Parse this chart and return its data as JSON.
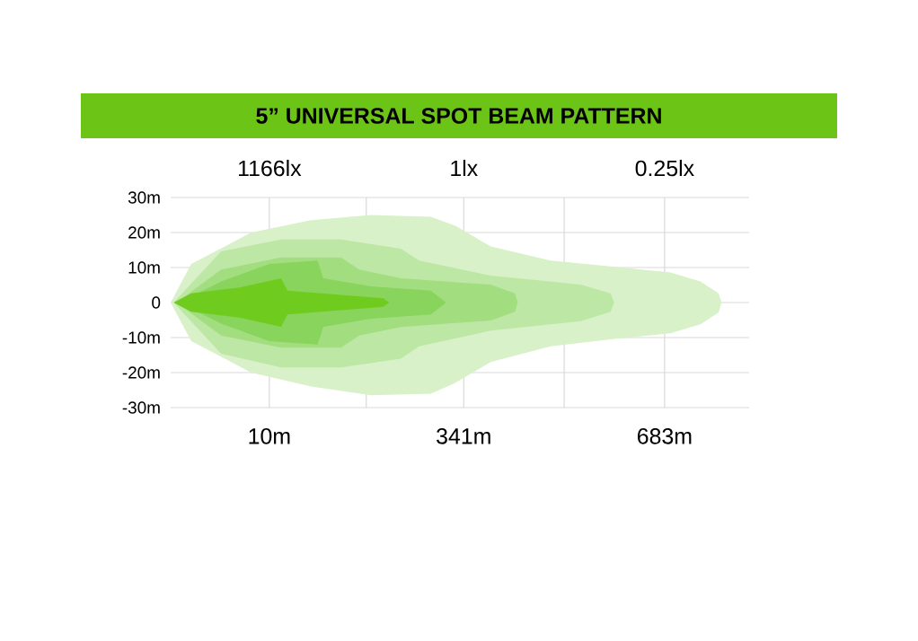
{
  "chart_data": {
    "type": "area",
    "title": "5” UNIVERSAL SPOT BEAM PATTERN",
    "xlim": [
      -158,
      827
    ],
    "ylim": [
      -30,
      30
    ],
    "xticks": [
      {
        "value": 10,
        "label": "10m"
      },
      {
        "value": 175,
        "label": null
      },
      {
        "value": 341,
        "label": "341m"
      },
      {
        "value": 512,
        "label": null
      },
      {
        "value": 683,
        "label": "683m"
      }
    ],
    "yticks": [
      {
        "value": 30,
        "label": "30m"
      },
      {
        "value": 20,
        "label": "20m"
      },
      {
        "value": 10,
        "label": "10m"
      },
      0,
      {
        "value": -10,
        "label": "-10m"
      },
      {
        "value": -20,
        "label": "-20m"
      },
      {
        "value": -30,
        "label": "-30m"
      }
    ],
    "annotations": [
      "1166lx",
      "1lx",
      "0.25lx"
    ],
    "grid": true,
    "series": [
      {
        "color": "#d8f1c8",
        "x": [
          -158,
          -123,
          -21,
          81,
          183,
          285,
          326,
          387,
          489,
          591,
          693,
          744,
          775,
          780
        ],
        "values": [
          0,
          11,
          20,
          23.5,
          25,
          24.5,
          22,
          16,
          12,
          10.3,
          8.6,
          6,
          2.6,
          0
        ]
      },
      {
        "color": "#d8f1c8",
        "x": [
          -158,
          -123,
          -21,
          81,
          183,
          285,
          326,
          387,
          489,
          591,
          693,
          744,
          775,
          780
        ],
        "values": [
          0,
          -11,
          -20,
          -24,
          -26.5,
          -26,
          -23,
          -17,
          -12.5,
          -10.5,
          -8.8,
          -6.2,
          -2.8,
          0
        ]
      },
      {
        "color": "#bde7a4",
        "x": [
          -153,
          -72,
          30,
          132,
          234,
          265,
          387,
          540,
          591,
          597
        ],
        "values": [
          0,
          14.6,
          18,
          18,
          15.4,
          12,
          7.7,
          5.1,
          2.6,
          0
        ]
      },
      {
        "color": "#bde7a4",
        "x": [
          -153,
          -72,
          30,
          132,
          234,
          265,
          387,
          540,
          591,
          597
        ],
        "values": [
          0,
          -14.6,
          -18.5,
          -18.5,
          -16,
          -12.5,
          -8,
          -5.3,
          -2.6,
          0
        ]
      },
      {
        "color": "#a2dd80",
        "x": [
          -148,
          -72,
          30,
          132,
          163,
          234,
          387,
          428,
          433
        ],
        "values": [
          0,
          9.4,
          12.9,
          12.9,
          9.4,
          6.9,
          5.1,
          2.6,
          0
        ]
      },
      {
        "color": "#a2dd80",
        "x": [
          -148,
          -72,
          30,
          132,
          163,
          234,
          387,
          428,
          433
        ],
        "values": [
          0,
          -9.4,
          -12.9,
          -12.9,
          -9.4,
          -7,
          -5.1,
          -2.6,
          0
        ]
      },
      {
        "color": "#88d45c",
        "x": [
          -143,
          -72,
          10,
          92,
          102,
          183,
          285,
          311
        ],
        "values": [
          0,
          6,
          11,
          12,
          6.9,
          4.6,
          3.4,
          0
        ]
      },
      {
        "color": "#88d45c",
        "x": [
          -143,
          -72,
          10,
          92,
          102,
          183,
          285,
          311
        ],
        "values": [
          0,
          -6,
          -11,
          -12,
          -6.9,
          -4.6,
          -3.4,
          0
        ]
      },
      {
        "color": "#6fcc1e",
        "x": [
          -153,
          -123,
          -41,
          30,
          41,
          132,
          204,
          214
        ],
        "values": [
          0,
          2.6,
          4.3,
          6.9,
          3.4,
          2.2,
          1.2,
          0
        ]
      },
      {
        "color": "#6fcc1e",
        "x": [
          -153,
          -123,
          -41,
          30,
          41,
          132,
          204,
          214
        ],
        "values": [
          0,
          -2.6,
          -4.3,
          -6.9,
          -3.4,
          -2.2,
          -1.2,
          0
        ]
      }
    ]
  }
}
